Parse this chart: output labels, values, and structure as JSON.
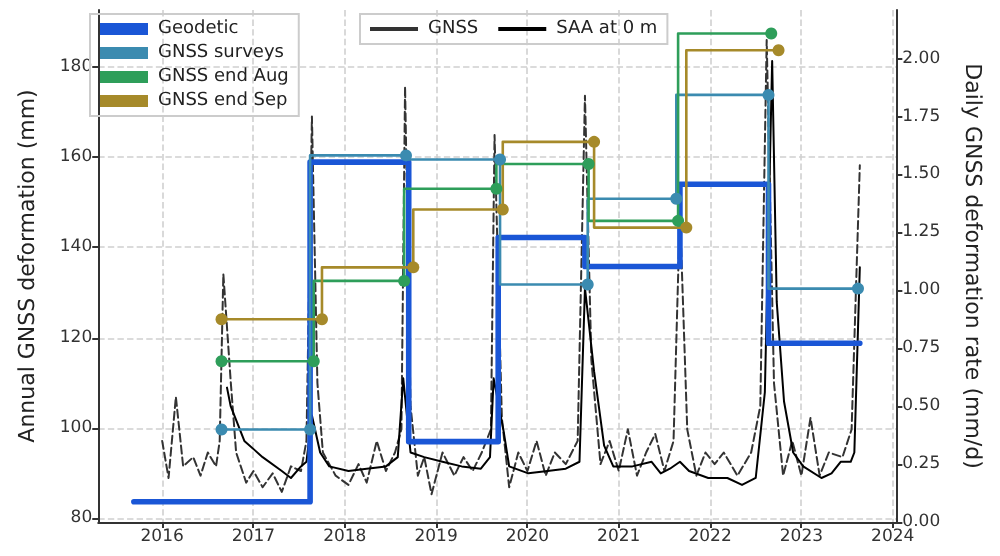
{
  "chart_data": {
    "type": "step",
    "ylabel": "Annual GNSS deformation (mm)",
    "y2label": "Daily GNSS deformation rate (mm/d)",
    "xlim": [
      2015.3,
      2024.04
    ],
    "xticks": [
      2016,
      2017,
      2018,
      2019,
      2020,
      2021,
      2022,
      2023,
      2024
    ],
    "ylim": [
      79.2,
      192.6
    ],
    "yticks": [
      80,
      100,
      120,
      140,
      160,
      180
    ],
    "y2lim": [
      0,
      2.21
    ],
    "y2ticks": [
      {
        "value": 0,
        "label": "0.00"
      },
      {
        "value": 0.25,
        "label": "0.25"
      },
      {
        "value": 0.5,
        "label": "0.50"
      },
      {
        "value": 0.75,
        "label": "0.75"
      },
      {
        "value": 1,
        "label": "1.00"
      },
      {
        "value": 1.25,
        "label": "1.25"
      },
      {
        "value": 1.5,
        "label": "1.50"
      },
      {
        "value": 1.75,
        "label": "1.75"
      },
      {
        "value": 2,
        "label": "2.00"
      }
    ],
    "grid": true,
    "legend": "top left",
    "series": [
      {
        "name": "Geodetic",
        "color": "#1a56d6",
        "marker": "none",
        "x": [
          2015.69,
          2017.62,
          2018.7,
          2019.68,
          2020.63,
          2021.67,
          2022.64,
          2023.64
        ],
        "values": [
          83.7,
          83.7,
          158.9,
          97,
          142.2,
          135.8,
          154,
          118.8
        ]
      },
      {
        "name": "GNSS surveys",
        "color": "#3b8bb0",
        "marker": "circle",
        "x": [
          2016.65,
          2017.62,
          2018.67,
          2019.7,
          2020.66,
          2021.63,
          2022.64,
          2023.62
        ],
        "values": [
          99.7,
          99.7,
          160.4,
          159.5,
          131.8,
          150.8,
          173.8,
          130.9
        ]
      },
      {
        "name": "GNSS end Aug",
        "color": "#2e9e5a",
        "marker": "circle",
        "x": [
          2016.65,
          2017.66,
          2018.65,
          2019.66,
          2020.67,
          2021.65,
          2022.67
        ],
        "values": [
          114.8,
          114.8,
          132.6,
          153.0,
          158.5,
          145.9,
          187.4
        ]
      },
      {
        "name": "GNSS end Sep",
        "color": "#a68a2a",
        "marker": "circle",
        "x": [
          2016.65,
          2017.75,
          2018.75,
          2019.73,
          2020.73,
          2021.74,
          2022.75
        ],
        "values": [
          124.1,
          124.1,
          135.6,
          148.4,
          163.4,
          144.4,
          183.7
        ]
      },
      {
        "name": "GNSS",
        "type": "line",
        "axis": "y2",
        "color": "#333333",
        "marker": "none",
        "line_style": "dashed",
        "x": [
          2016.0,
          2016.07,
          2016.15,
          2016.23,
          2016.34,
          2016.42,
          2016.5,
          2016.59,
          2016.63,
          2016.67,
          2016.75,
          2016.81,
          2016.92,
          2017.0,
          2017.1,
          2017.21,
          2017.31,
          2017.41,
          2017.52,
          2017.58,
          2017.64,
          2017.7,
          2017.76,
          2017.9,
          2018.04,
          2018.15,
          2018.24,
          2018.35,
          2018.45,
          2018.55,
          2018.62,
          2018.66,
          2018.72,
          2018.8,
          2018.87,
          2018.95,
          2019.07,
          2019.2,
          2019.3,
          2019.4,
          2019.5,
          2019.6,
          2019.64,
          2019.72,
          2019.8,
          2019.9,
          2020.0,
          2020.1,
          2020.2,
          2020.3,
          2020.42,
          2020.55,
          2020.63,
          2020.7,
          2020.8,
          2020.9,
          2021.0,
          2021.1,
          2021.2,
          2021.3,
          2021.4,
          2021.5,
          2021.6,
          2021.67,
          2021.75,
          2021.85,
          2021.95,
          2022.05,
          2022.15,
          2022.3,
          2022.45,
          2022.55,
          2022.62,
          2022.7,
          2022.8,
          2022.9,
          2023.0,
          2023.1,
          2023.2,
          2023.3,
          2023.45,
          2023.55,
          2023.64
        ],
        "values": [
          0.35,
          0.19,
          0.54,
          0.24,
          0.28,
          0.2,
          0.3,
          0.24,
          0.35,
          1.07,
          0.61,
          0.3,
          0.17,
          0.22,
          0.15,
          0.21,
          0.13,
          0.24,
          0.22,
          0.35,
          1.75,
          0.6,
          0.3,
          0.2,
          0.16,
          0.25,
          0.17,
          0.35,
          0.22,
          0.3,
          0.4,
          1.88,
          0.5,
          0.2,
          0.28,
          0.12,
          0.3,
          0.2,
          0.28,
          0.22,
          0.3,
          0.4,
          1.67,
          0.45,
          0.15,
          0.3,
          0.22,
          0.35,
          0.2,
          0.3,
          0.25,
          0.35,
          1.84,
          0.7,
          0.25,
          0.35,
          0.22,
          0.4,
          0.2,
          0.3,
          0.38,
          0.22,
          0.35,
          1.34,
          0.4,
          0.2,
          0.3,
          0.25,
          0.3,
          0.2,
          0.3,
          0.5,
          2.08,
          0.6,
          0.2,
          0.35,
          0.2,
          0.45,
          0.2,
          0.3,
          0.28,
          0.4,
          1.54
        ]
      },
      {
        "name": "SAA at 0 m",
        "type": "line",
        "axis": "y2",
        "color": "#000000",
        "marker": "none",
        "x": [
          2016.71,
          2016.75,
          2016.9,
          2017.1,
          2017.31,
          2017.41,
          2017.52,
          2017.58,
          2017.64,
          2017.73,
          2017.83,
          2018.04,
          2018.24,
          2018.45,
          2018.58,
          2018.64,
          2018.72,
          2018.87,
          2019.07,
          2019.28,
          2019.49,
          2019.59,
          2019.63,
          2019.74,
          2019.8,
          2020.01,
          2020.22,
          2020.42,
          2020.57,
          2020.63,
          2020.73,
          2020.84,
          2020.94,
          2021.15,
          2021.36,
          2021.46,
          2021.56,
          2021.67,
          2021.77,
          2021.98,
          2022.19,
          2022.35,
          2022.5,
          2022.6,
          2022.68,
          2022.73,
          2022.81,
          2022.91,
          2023.02,
          2023.22,
          2023.33,
          2023.43,
          2023.54,
          2023.58,
          2023.64
        ],
        "values": [
          0.58,
          0.5,
          0.35,
          0.28,
          0.22,
          0.19,
          0.24,
          0.26,
          0.46,
          0.3,
          0.24,
          0.22,
          0.23,
          0.24,
          0.28,
          0.62,
          0.3,
          0.28,
          0.26,
          0.24,
          0.23,
          0.28,
          0.62,
          0.39,
          0.24,
          0.21,
          0.22,
          0.23,
          0.26,
          1.01,
          0.65,
          0.33,
          0.24,
          0.24,
          0.26,
          0.21,
          0.23,
          0.26,
          0.22,
          0.19,
          0.19,
          0.16,
          0.19,
          0.56,
          1.99,
          0.95,
          0.52,
          0.3,
          0.24,
          0.19,
          0.21,
          0.26,
          0.26,
          0.3,
          1.1
        ]
      }
    ]
  }
}
